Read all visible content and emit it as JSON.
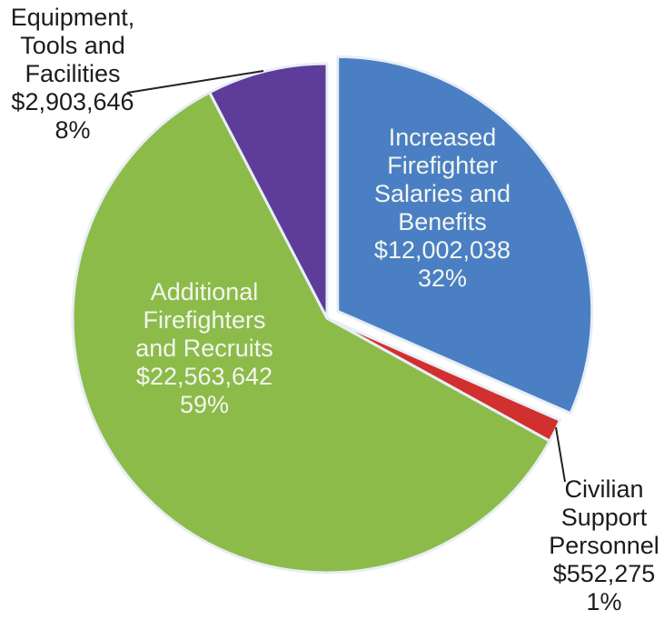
{
  "chart_data": {
    "type": "pie",
    "title": "",
    "slices": [
      {
        "label": [
          "Increased",
          "Firefighter",
          "Salaries and",
          "Benefits"
        ],
        "value_label": "$12,002,038",
        "pct_label": "32%",
        "value": 12002038,
        "percent": 32,
        "color": "#4a7fc4",
        "label_position": "inside"
      },
      {
        "label": [
          "Civilian",
          "Support",
          "Personnel"
        ],
        "value_label": "$552,275",
        "pct_label": "1%",
        "value": 552275,
        "percent": 1,
        "color": "#d22f2f",
        "label_position": "outside"
      },
      {
        "label": [
          "Additional",
          "Firefighters",
          "and Recruits"
        ],
        "value_label": "$22,563,642",
        "pct_label": "59%",
        "value": 22563642,
        "percent": 59,
        "color": "#8cbb4a",
        "label_position": "inside"
      },
      {
        "label": [
          "Equipment,",
          "Tools and",
          "Facilities"
        ],
        "value_label": "$2,903,646",
        "pct_label": "8%",
        "value": 2903646,
        "percent": 8,
        "color": "#5d3c9a",
        "label_position": "outside"
      }
    ]
  }
}
